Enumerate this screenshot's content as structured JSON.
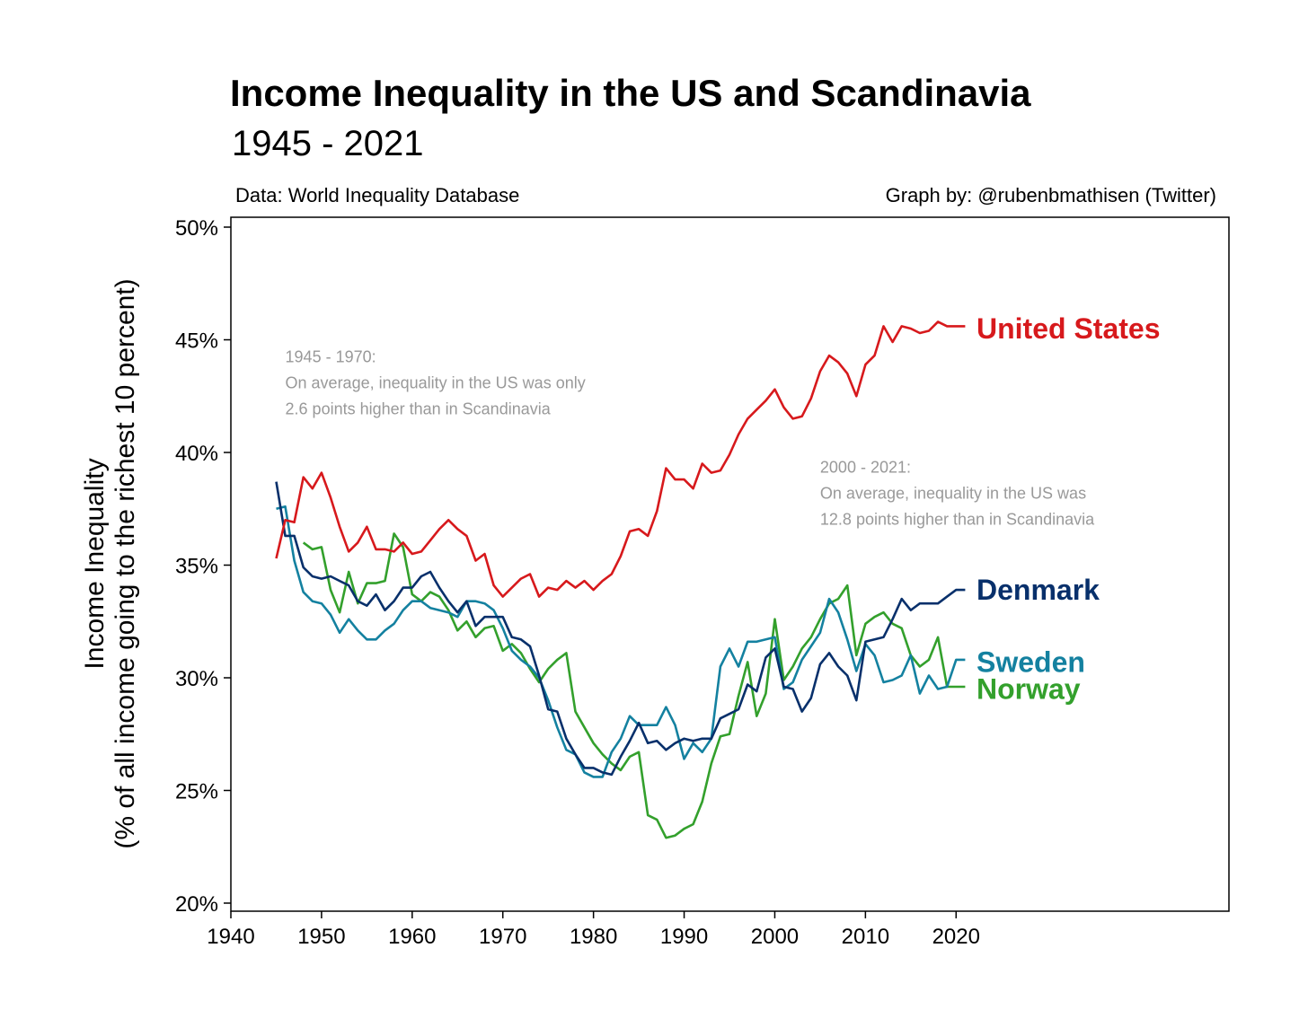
{
  "header": {
    "title": "Income Inequality in the US and Scandinavia",
    "subtitle": "1945 - 2021",
    "source": "Data: World Inequality Database",
    "credit": "Graph by: @rubenbmathisen (Twitter)"
  },
  "chart_data": {
    "type": "line",
    "title": "Income Inequality in the US and Scandinavia",
    "subtitle": "1945 - 2021",
    "xlabel": "",
    "ylabel": [
      "Income Inequality",
      "(% of all income going to the richest 10 percent)"
    ],
    "xlim": [
      1940,
      2070
    ],
    "ylim": [
      20,
      50
    ],
    "x_ticks": [
      1940,
      1950,
      1960,
      1970,
      1980,
      1990,
      2000,
      2010,
      2020
    ],
    "y_ticks": [
      20,
      25,
      30,
      35,
      40,
      45,
      50
    ],
    "y_tick_labels": [
      "20%",
      "25%",
      "30%",
      "35%",
      "40%",
      "45%",
      "50%"
    ],
    "grid": false,
    "legend": "direct labels at line ends",
    "annotations": [
      {
        "lines": [
          "1945 - 1970:",
          "On average, inequality in the US was only",
          "2.6 points higher than in Scandinavia"
        ],
        "x": 1946,
        "y": 44.0
      },
      {
        "lines": [
          "2000 - 2021:",
          "On average, inequality in the US was",
          "12.8 points higher than in Scandinavia"
        ],
        "x": 2005,
        "y": 39.1
      }
    ],
    "series": [
      {
        "name": "United States",
        "color": "#d7191c",
        "x": [
          1945,
          1946,
          1947,
          1948,
          1949,
          1950,
          1951,
          1952,
          1953,
          1954,
          1955,
          1956,
          1957,
          1958,
          1959,
          1960,
          1961,
          1962,
          1963,
          1964,
          1965,
          1966,
          1967,
          1968,
          1969,
          1970,
          1971,
          1972,
          1973,
          1974,
          1975,
          1976,
          1977,
          1978,
          1979,
          1980,
          1981,
          1982,
          1983,
          1984,
          1985,
          1986,
          1987,
          1988,
          1989,
          1990,
          1991,
          1992,
          1993,
          1994,
          1995,
          1996,
          1997,
          1998,
          1999,
          2000,
          2001,
          2002,
          2003,
          2004,
          2005,
          2006,
          2007,
          2008,
          2009,
          2010,
          2011,
          2012,
          2013,
          2014,
          2015,
          2016,
          2017,
          2018,
          2019,
          2020,
          2021
        ],
        "values": [
          35.3,
          37.0,
          36.9,
          38.9,
          38.4,
          39.1,
          38.0,
          36.7,
          35.6,
          36.0,
          36.7,
          35.7,
          35.7,
          35.6,
          36.0,
          35.5,
          35.6,
          36.1,
          36.6,
          37.0,
          36.6,
          36.3,
          35.2,
          35.5,
          34.1,
          33.6,
          34.0,
          34.4,
          34.6,
          33.6,
          34.0,
          33.9,
          34.3,
          34.0,
          34.3,
          33.9,
          34.3,
          34.6,
          35.4,
          36.5,
          36.6,
          36.3,
          37.4,
          39.3,
          38.8,
          38.8,
          38.4,
          39.5,
          39.1,
          39.2,
          39.9,
          40.8,
          41.5,
          41.9,
          42.3,
          42.8,
          42.0,
          41.5,
          41.6,
          42.4,
          43.6,
          44.3,
          44.0,
          43.5,
          42.5,
          43.9,
          44.3,
          45.6,
          44.9,
          45.6,
          45.5,
          45.3,
          45.4,
          45.8,
          45.6,
          45.6,
          45.6
        ]
      },
      {
        "name": "Denmark",
        "color": "#08306b",
        "x": [
          1945,
          1946,
          1947,
          1948,
          1949,
          1950,
          1951,
          1952,
          1953,
          1954,
          1955,
          1956,
          1957,
          1958,
          1959,
          1960,
          1961,
          1962,
          1963,
          1964,
          1965,
          1966,
          1967,
          1968,
          1969,
          1970,
          1971,
          1972,
          1973,
          1974,
          1975,
          1976,
          1977,
          1978,
          1979,
          1980,
          1981,
          1982,
          1983,
          1984,
          1985,
          1986,
          1987,
          1988,
          1989,
          1990,
          1991,
          1992,
          1993,
          1994,
          1995,
          1996,
          1997,
          1998,
          1999,
          2000,
          2001,
          2002,
          2003,
          2004,
          2005,
          2006,
          2007,
          2008,
          2009,
          2010,
          2011,
          2012,
          2013,
          2014,
          2015,
          2016,
          2017,
          2018,
          2019,
          2020,
          2021
        ],
        "values": [
          38.7,
          36.3,
          36.3,
          34.9,
          34.5,
          34.4,
          34.5,
          34.3,
          34.1,
          33.4,
          33.2,
          33.7,
          33.0,
          33.4,
          34.0,
          34.0,
          34.5,
          34.7,
          34.0,
          33.4,
          32.9,
          33.4,
          32.3,
          32.7,
          32.7,
          32.7,
          31.8,
          31.7,
          31.4,
          30.1,
          28.6,
          28.5,
          27.3,
          26.6,
          26.0,
          26.0,
          25.8,
          25.7,
          26.5,
          27.2,
          28.0,
          27.1,
          27.2,
          26.8,
          27.1,
          27.3,
          27.2,
          27.3,
          27.3,
          28.2,
          28.4,
          28.6,
          29.7,
          29.4,
          30.9,
          31.3,
          29.6,
          29.5,
          28.5,
          29.1,
          30.6,
          31.1,
          30.5,
          30.1,
          29.0,
          31.6,
          31.7,
          31.8,
          32.6,
          33.5,
          33.0,
          33.3,
          33.3,
          33.3,
          33.6,
          33.9,
          33.9
        ]
      },
      {
        "name": "Sweden",
        "color": "#1481a0",
        "x": [
          1945,
          1946,
          1947,
          1948,
          1949,
          1950,
          1951,
          1952,
          1953,
          1954,
          1955,
          1956,
          1957,
          1958,
          1959,
          1960,
          1961,
          1962,
          1963,
          1964,
          1965,
          1966,
          1967,
          1968,
          1969,
          1970,
          1971,
          1972,
          1973,
          1974,
          1975,
          1976,
          1977,
          1978,
          1979,
          1980,
          1981,
          1982,
          1983,
          1984,
          1985,
          1986,
          1987,
          1988,
          1989,
          1990,
          1991,
          1992,
          1993,
          1994,
          1995,
          1996,
          1997,
          1998,
          1999,
          2000,
          2001,
          2002,
          2003,
          2004,
          2005,
          2006,
          2007,
          2008,
          2009,
          2010,
          2011,
          2012,
          2013,
          2014,
          2015,
          2016,
          2017,
          2018,
          2019,
          2020,
          2021
        ],
        "values": [
          37.5,
          37.6,
          35.2,
          33.8,
          33.4,
          33.3,
          32.8,
          32.0,
          32.6,
          32.1,
          31.7,
          31.7,
          32.1,
          32.4,
          33.0,
          33.4,
          33.4,
          33.1,
          33.0,
          32.9,
          32.7,
          33.4,
          33.4,
          33.3,
          33.0,
          32.2,
          31.2,
          30.8,
          30.5,
          30.0,
          29.0,
          27.8,
          26.8,
          26.6,
          25.8,
          25.6,
          25.6,
          26.7,
          27.3,
          28.3,
          27.9,
          27.9,
          27.9,
          28.7,
          27.9,
          26.4,
          27.1,
          26.7,
          27.3,
          30.5,
          31.3,
          30.5,
          31.6,
          31.6,
          31.7,
          31.8,
          29.5,
          29.8,
          30.8,
          31.4,
          32.0,
          33.5,
          32.9,
          31.7,
          30.3,
          31.5,
          31.0,
          29.8,
          29.9,
          30.1,
          31.0,
          29.3,
          30.1,
          29.5,
          29.6,
          30.8,
          30.8
        ]
      },
      {
        "name": "Norway",
        "color": "#33a02c",
        "x": [
          1948,
          1949,
          1950,
          1951,
          1952,
          1953,
          1954,
          1955,
          1956,
          1957,
          1958,
          1959,
          1960,
          1961,
          1962,
          1963,
          1964,
          1965,
          1966,
          1967,
          1968,
          1969,
          1970,
          1971,
          1972,
          1973,
          1974,
          1975,
          1976,
          1977,
          1978,
          1979,
          1980,
          1981,
          1982,
          1983,
          1984,
          1985,
          1986,
          1987,
          1988,
          1989,
          1990,
          1991,
          1992,
          1993,
          1994,
          1995,
          1996,
          1997,
          1998,
          1999,
          2000,
          2001,
          2002,
          2003,
          2004,
          2005,
          2006,
          2007,
          2008,
          2009,
          2010,
          2011,
          2012,
          2013,
          2014,
          2015,
          2016,
          2017,
          2018,
          2019,
          2020,
          2021
        ],
        "values": [
          36.0,
          35.7,
          35.8,
          33.9,
          32.9,
          34.7,
          33.3,
          34.2,
          34.2,
          34.3,
          36.4,
          35.8,
          33.7,
          33.4,
          33.8,
          33.6,
          33.0,
          32.1,
          32.5,
          31.8,
          32.2,
          32.3,
          31.2,
          31.5,
          31.1,
          30.4,
          29.8,
          30.4,
          30.8,
          31.1,
          28.5,
          27.8,
          27.1,
          26.6,
          26.2,
          25.9,
          26.5,
          26.7,
          23.9,
          23.7,
          22.9,
          23.0,
          23.3,
          23.5,
          24.5,
          26.2,
          27.4,
          27.5,
          29.2,
          30.7,
          28.3,
          29.3,
          32.6,
          29.9,
          30.5,
          31.3,
          31.8,
          32.6,
          33.3,
          33.5,
          34.1,
          31.0,
          32.4,
          32.7,
          32.9,
          32.4,
          32.2,
          31.0,
          30.5,
          30.8,
          31.8,
          29.6,
          29.6,
          29.6
        ]
      }
    ]
  }
}
